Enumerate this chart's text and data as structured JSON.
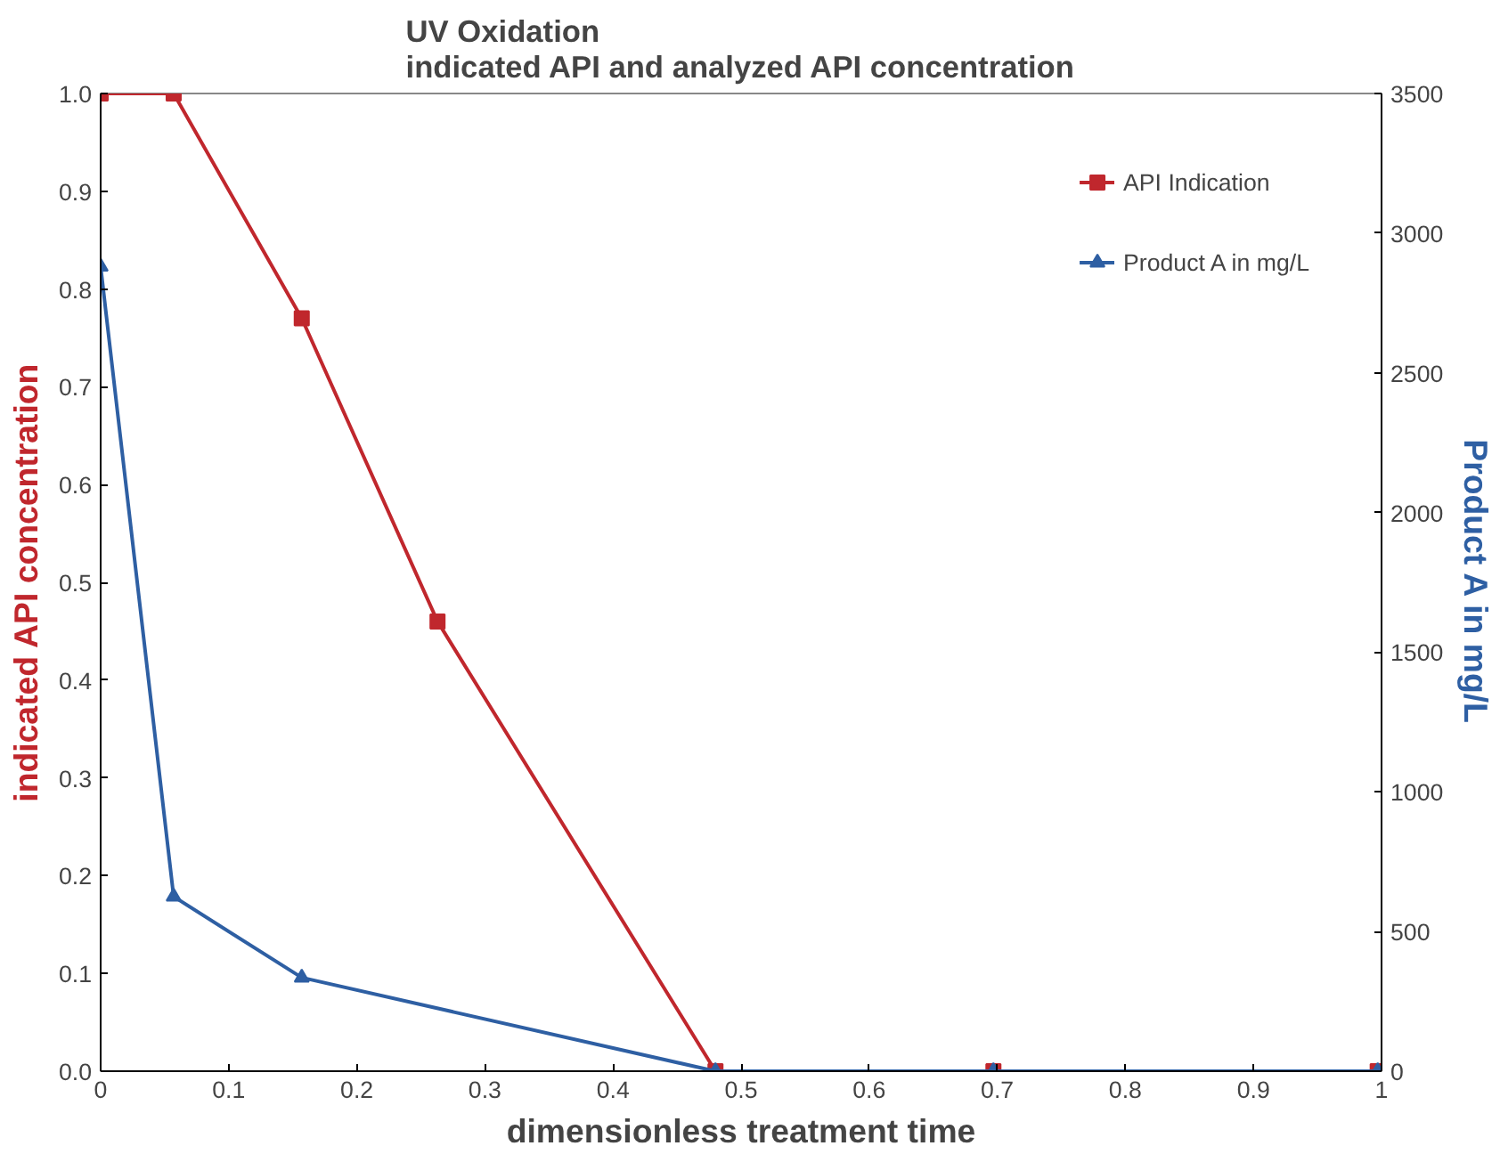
{
  "chart_data": {
    "type": "line",
    "title": "UV Oxidation\nindicated API and analyzed API concentration",
    "xlabel": "dimensionless treatment time",
    "ylabel": "indicated API concentration",
    "y2label": "Product A in mg/L",
    "series": [
      {
        "name": "API Indication",
        "color": "#c0272d",
        "marker": "square",
        "x": [
          0,
          0.057,
          0.157,
          0.263,
          0.48,
          0.697,
          0.997
        ],
        "values": [
          1.0,
          1.0,
          0.77,
          0.46,
          0,
          0,
          0
        ]
      },
      {
        "name": "Product A in mg/L",
        "color": "#2e5fa3",
        "marker": "triangle",
        "axis": "y2",
        "x": [
          0,
          0.057,
          0.157,
          0.48,
          0.697,
          0.997
        ],
        "values": [
          2880,
          625,
          335,
          0,
          0,
          0
        ]
      }
    ],
    "xlim": [
      0,
      1
    ],
    "xticks": [
      0,
      0.1,
      0.2,
      0.3,
      0.4,
      0.5,
      0.6,
      0.7,
      0.8,
      0.9,
      1
    ],
    "ylim": [
      0,
      1
    ],
    "yticks": [
      {
        "value": 0,
        "label": "0.0"
      },
      0.1,
      0.2,
      0.3,
      0.4,
      0.5,
      0.6,
      0.7,
      0.8,
      0.9,
      {
        "value": 1,
        "label": "1.0"
      }
    ],
    "y2lim": [
      0,
      3500
    ],
    "y2ticks": [
      0,
      500,
      1000,
      1500,
      2000,
      2500,
      3000,
      3500
    ],
    "grid": false,
    "legend": "top right",
    "line_style": "solid"
  }
}
